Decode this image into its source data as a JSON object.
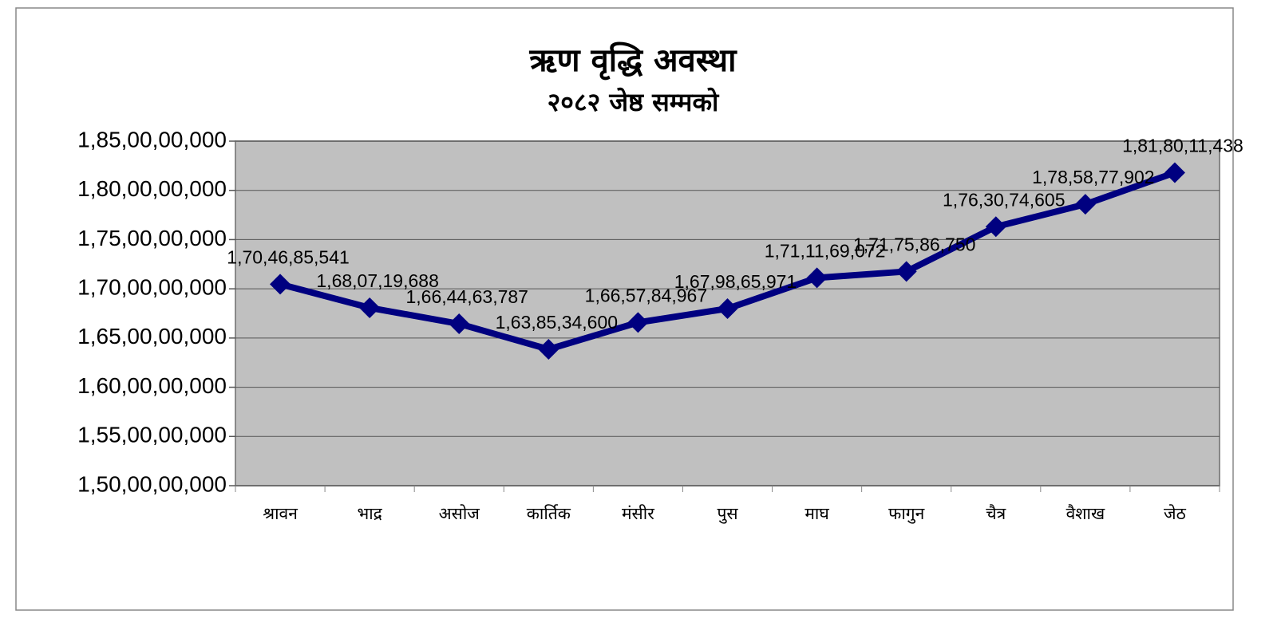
{
  "chart_data": {
    "type": "line",
    "title": "ऋण वृद्धि अवस्था",
    "subtitle": "२०८२ जेष्ठ सम्मको",
    "categories": [
      "श्रावन",
      "भाद्र",
      "असोज",
      "कार्तिक",
      "मंसीर",
      "पुस",
      "माघ",
      "फागुन",
      "चैत्र",
      "वैशाख",
      "जेठ"
    ],
    "values": [
      1704685541,
      1680719688,
      1664463787,
      1638534600,
      1665784967,
      1679865971,
      1711169072,
      1717586750,
      1763074605,
      1785877902,
      1818011438
    ],
    "value_labels": [
      "1,70,46,85,541",
      "1,68,07,19,688",
      "1,66,44,63,787",
      "1,63,85,34,600",
      "1,66,57,84,967",
      "1,67,98,65,971",
      "1,71,11,69,072",
      "1,71,75,86,750",
      "1,76,30,74,605",
      "1,78,58,77,902",
      "1,81,80,11,438"
    ],
    "color": "#000080",
    "plot_background": "#c0c0c0",
    "ylim": [
      1500000000,
      1850000000
    ],
    "yticks": [
      {
        "value": 1500000000,
        "label": "1,50,00,00,000"
      },
      {
        "value": 1550000000,
        "label": "1,55,00,00,000"
      },
      {
        "value": 1600000000,
        "label": "1,60,00,00,000"
      },
      {
        "value": 1650000000,
        "label": "1,65,00,00,000"
      },
      {
        "value": 1700000000,
        "label": "1,70,00,00,000"
      },
      {
        "value": 1750000000,
        "label": "1,75,00,00,000"
      },
      {
        "value": 1800000000,
        "label": "1,80,00,00,000"
      },
      {
        "value": 1850000000,
        "label": "1,85,00,00,000"
      }
    ],
    "grid": true
  }
}
